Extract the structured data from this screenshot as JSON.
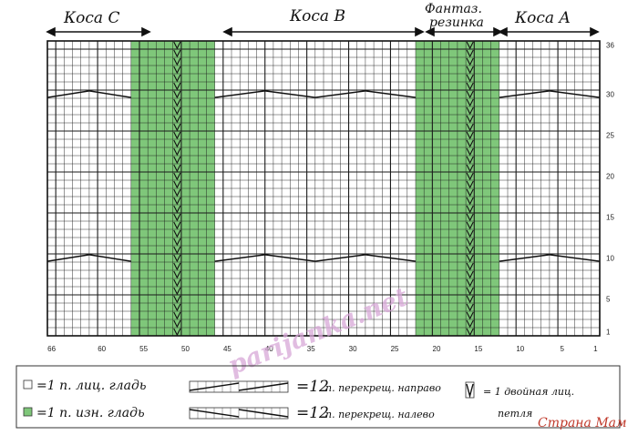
{
  "sections": {
    "c": "Коса C",
    "b": "Коса B",
    "fantaz_1": "Фантаз.",
    "fantaz_2": "резинка",
    "a": "Коса A"
  },
  "colors": {
    "purl_fill": "#7fc77a",
    "knit_fill": "#ffffff",
    "grid_line": "#1a1a1a",
    "accent_purl": "#7fc77a"
  },
  "chart_data": {
    "type": "knitting-chart",
    "stitches": 66,
    "rows": 36,
    "green_columns": [
      [
        47,
        56
      ],
      [
        13,
        22
      ]
    ],
    "double_knit_columns": [
      51,
      16
    ],
    "cable_right_rows": [
      10,
      30
    ],
    "cable_left_rows": [
      10,
      30
    ],
    "y_ticks": [
      "36",
      "30",
      "25",
      "20",
      "15",
      "10",
      "5",
      "1"
    ],
    "y_tick_values": [
      36,
      30,
      25,
      20,
      15,
      10,
      5,
      1
    ],
    "x_ticks": [
      "66",
      "60",
      "55",
      "50",
      "45",
      "40",
      "35",
      "30",
      "25",
      "20",
      "15",
      "10",
      "5",
      "1"
    ],
    "x_tick_values": [
      66,
      60,
      55,
      50,
      45,
      40,
      35,
      30,
      25,
      20,
      15,
      10,
      5,
      1
    ]
  },
  "legend": {
    "knit": "=1 п. лиц. гладь",
    "purl": "=1 п. изн. гладь",
    "cross_right_num": "=12",
    "cross_right_text": "п. перекрещ. направо",
    "cross_left_num": "=12",
    "cross_left_text": "п. перекрещ. налево",
    "double_1": "= 1 двойная лиц.",
    "double_2": "петля"
  },
  "watermark": "parijanka.net",
  "brand": "Страна Мам"
}
